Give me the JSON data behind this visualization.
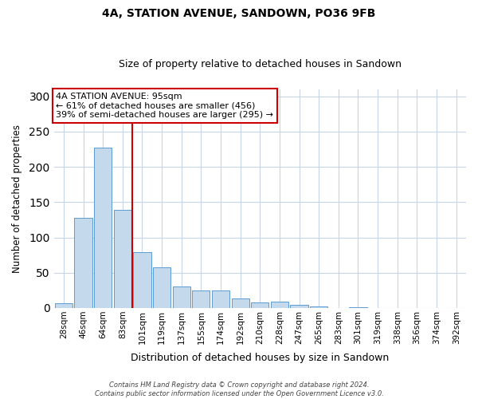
{
  "title": "4A, STATION AVENUE, SANDOWN, PO36 9FB",
  "subtitle": "Size of property relative to detached houses in Sandown",
  "xlabel": "Distribution of detached houses by size in Sandown",
  "ylabel": "Number of detached properties",
  "categories": [
    "28sqm",
    "46sqm",
    "64sqm",
    "83sqm",
    "101sqm",
    "119sqm",
    "137sqm",
    "155sqm",
    "174sqm",
    "192sqm",
    "210sqm",
    "228sqm",
    "247sqm",
    "265sqm",
    "283sqm",
    "301sqm",
    "319sqm",
    "338sqm",
    "356sqm",
    "374sqm",
    "392sqm"
  ],
  "values": [
    7,
    128,
    227,
    139,
    79,
    58,
    31,
    25,
    25,
    14,
    8,
    9,
    5,
    2,
    0,
    1,
    0,
    0,
    0,
    0,
    0
  ],
  "bar_color": "#c5d9ed",
  "bar_edge_color": "#5b9bd5",
  "bar_width": 0.9,
  "vline_color": "#cc0000",
  "vline_pos": 3.5,
  "annotation_text": "4A STATION AVENUE: 95sqm\n← 61% of detached houses are smaller (456)\n39% of semi-detached houses are larger (295) →",
  "annotation_box_facecolor": "#ffffff",
  "annotation_box_edgecolor": "#cc0000",
  "ylim": [
    0,
    310
  ],
  "yticks": [
    0,
    50,
    100,
    150,
    200,
    250,
    300
  ],
  "grid_color": "#c8d4e8",
  "footer_text": "Contains HM Land Registry data © Crown copyright and database right 2024.\nContains public sector information licensed under the Open Government Licence v3.0.",
  "fig_facecolor": "#ffffff",
  "title_fontsize": 10,
  "subtitle_fontsize": 9,
  "ylabel_fontsize": 8.5,
  "xlabel_fontsize": 9,
  "tick_fontsize": 7.5,
  "annot_fontsize": 8
}
